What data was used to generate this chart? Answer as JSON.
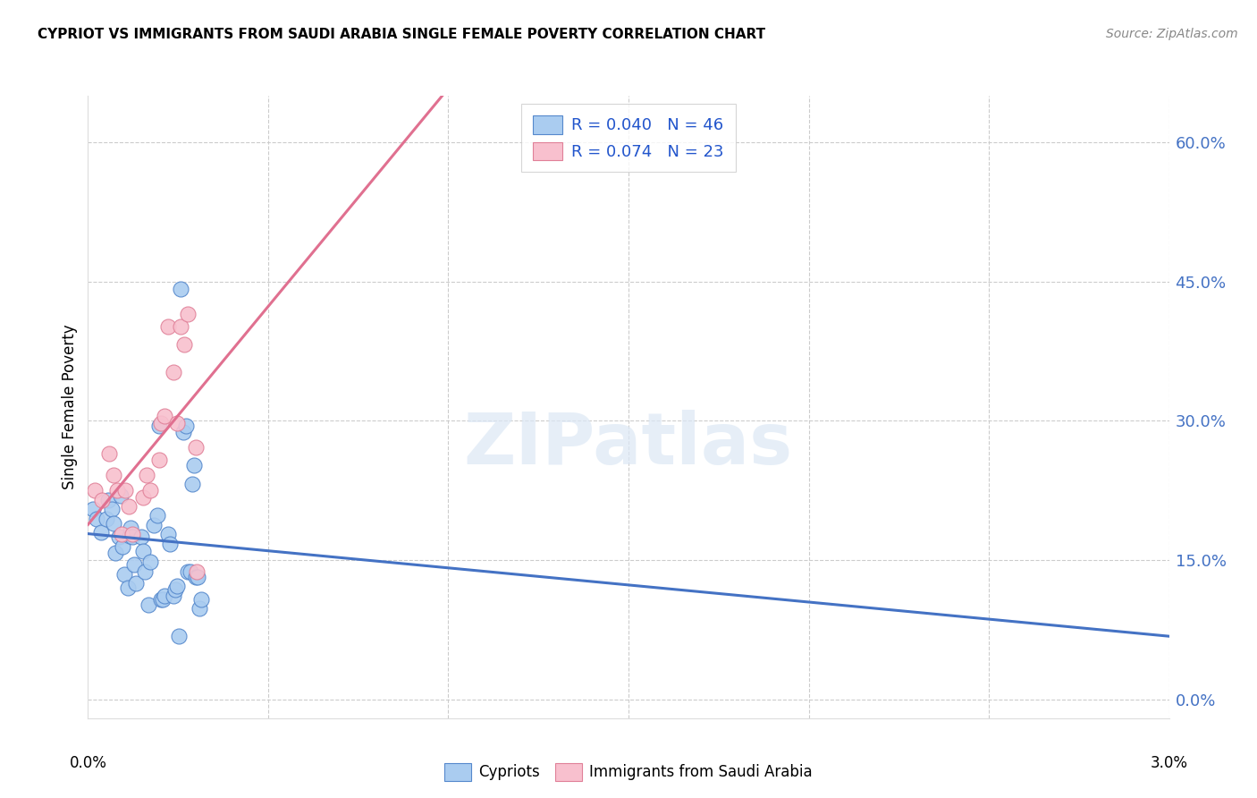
{
  "title": "CYPRIOT VS IMMIGRANTS FROM SAUDI ARABIA SINGLE FEMALE POVERTY CORRELATION CHART",
  "source": "Source: ZipAtlas.com",
  "ylabel": "Single Female Poverty",
  "watermark": "ZIPatlas",
  "cypriot_color": "#aaccf0",
  "cypriot_edge_color": "#5588cc",
  "cypriot_line_color": "#4472c4",
  "immigrant_color": "#f8c0ce",
  "immigrant_edge_color": "#e08098",
  "immigrant_line_color": "#e07090",
  "cypriot_R": "0.040",
  "cypriot_N": "46",
  "immigrant_R": "0.074",
  "immigrant_N": "23",
  "ytick_vals": [
    0.0,
    0.15,
    0.3,
    0.45,
    0.6
  ],
  "ytick_labels": [
    "0.0%",
    "15.0%",
    "30.0%",
    "45.0%",
    "60.0%"
  ],
  "xlim": [
    0.0,
    0.03
  ],
  "ylim": [
    -0.02,
    0.65
  ],
  "cypriot_x": [
    0.00015,
    0.00025,
    0.00035,
    0.0005,
    0.00055,
    0.00065,
    0.0007,
    0.00075,
    0.00085,
    0.0009,
    0.00095,
    0.001,
    0.0011,
    0.00115,
    0.00118,
    0.00122,
    0.00128,
    0.00132,
    0.00148,
    0.00152,
    0.00158,
    0.00168,
    0.00172,
    0.00182,
    0.00192,
    0.00198,
    0.00202,
    0.00208,
    0.00212,
    0.00222,
    0.00228,
    0.00238,
    0.00242,
    0.00248,
    0.00252,
    0.00258,
    0.00265,
    0.00272,
    0.00278,
    0.00285,
    0.0029,
    0.00295,
    0.003,
    0.00305,
    0.0031,
    0.00315
  ],
  "cypriot_y": [
    0.205,
    0.195,
    0.18,
    0.195,
    0.215,
    0.205,
    0.19,
    0.158,
    0.175,
    0.22,
    0.165,
    0.135,
    0.12,
    0.176,
    0.185,
    0.175,
    0.145,
    0.125,
    0.175,
    0.16,
    0.138,
    0.102,
    0.148,
    0.188,
    0.198,
    0.295,
    0.108,
    0.108,
    0.112,
    0.178,
    0.168,
    0.112,
    0.118,
    0.122,
    0.068,
    0.442,
    0.288,
    0.295,
    0.138,
    0.138,
    0.232,
    0.252,
    0.132,
    0.132,
    0.098,
    0.108
  ],
  "immigrant_x": [
    0.00018,
    0.00038,
    0.00058,
    0.00072,
    0.00082,
    0.00092,
    0.00102,
    0.00112,
    0.00122,
    0.00152,
    0.00162,
    0.00172,
    0.00198,
    0.00202,
    0.00212,
    0.00222,
    0.00238,
    0.00248,
    0.00258,
    0.00268,
    0.00278,
    0.00298,
    0.00302
  ],
  "immigrant_y": [
    0.225,
    0.215,
    0.265,
    0.242,
    0.225,
    0.178,
    0.225,
    0.208,
    0.178,
    0.218,
    0.242,
    0.225,
    0.258,
    0.298,
    0.305,
    0.402,
    0.352,
    0.298,
    0.402,
    0.382,
    0.415,
    0.272,
    0.138
  ]
}
